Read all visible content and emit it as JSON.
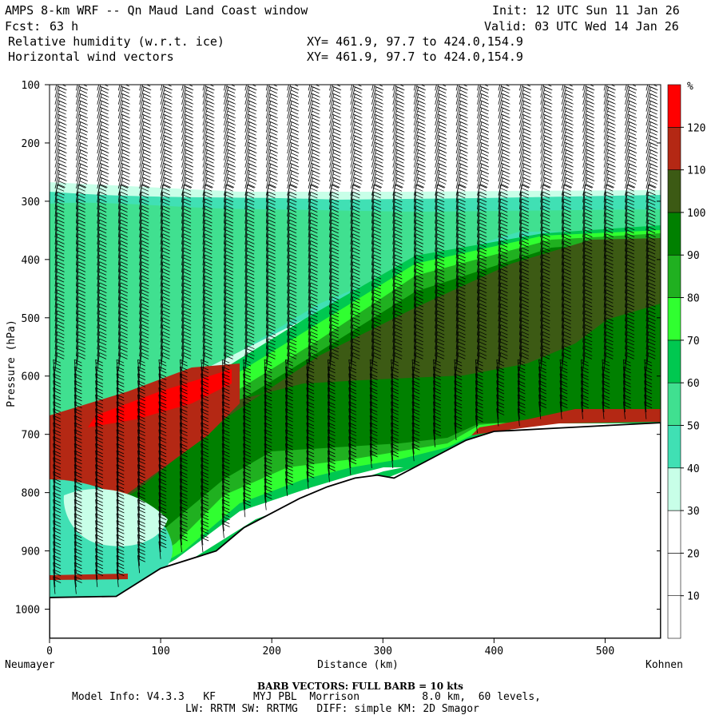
{
  "header": {
    "title": "AMPS 8-km WRF -- Qn Maud Land Coast window",
    "init": "Init: 12 UTC Sun 11 Jan 26",
    "fcst_label": "Fcst:",
    "fcst_value": "63 h",
    "valid": "Valid: 03 UTC Wed 14 Jan 26",
    "field1": "Relative humidity (w.r.t. ice)",
    "field2": "Horizontal wind vectors",
    "xy1": "XY= 461.9, 97.7 to 424.0,154.9",
    "xy2": "XY= 461.9, 97.7 to 424.0,154.9"
  },
  "chart_data": {
    "type": "heatmap",
    "title": "Relative humidity (w.r.t. ice) cross section",
    "xlabel": "Distance (km)",
    "ylabel": "Pressure (hPa)",
    "xlim": [
      0,
      550
    ],
    "ylim": [
      1050,
      100
    ],
    "x_ticks": [
      0,
      100,
      200,
      300,
      400,
      500
    ],
    "y_ticks": [
      100,
      200,
      300,
      400,
      500,
      600,
      700,
      800,
      900,
      1000
    ],
    "x_start_label": "Neumayer",
    "x_end_label": "Kohnen",
    "colorbar": {
      "unit": "%",
      "levels": [
        10,
        20,
        30,
        40,
        50,
        60,
        70,
        80,
        90,
        100,
        110,
        120
      ],
      "colors": [
        "#ffffff",
        "#ffffff",
        "#ffffff",
        "#c8ffe8",
        "#40e0b4",
        "#40e090",
        "#00c850",
        "#30ff30",
        "#20b020",
        "#008000",
        "#3c5a14",
        "#b42814",
        "#ff0000"
      ]
    },
    "terrain": {
      "distance_km": [
        0,
        60,
        100,
        150,
        175,
        200,
        225,
        250,
        275,
        295,
        310,
        330,
        345,
        375,
        400,
        450,
        500,
        550
      ],
      "surface_pressure_hPa": [
        980,
        978,
        930,
        900,
        860,
        835,
        810,
        790,
        775,
        770,
        775,
        755,
        740,
        710,
        695,
        690,
        685,
        680
      ]
    }
  },
  "footer": {
    "barb_note": "BARB VECTORS:  FULL BARB = 10 kts",
    "model_info": "Model Info: V4.3.3   KF      MYJ PBL  Morrison          8.0 km,  60 levels,",
    "model_info2": "LW: RRTM SW: RRTMG   DIFF: simple KM: 2D Smagor"
  }
}
